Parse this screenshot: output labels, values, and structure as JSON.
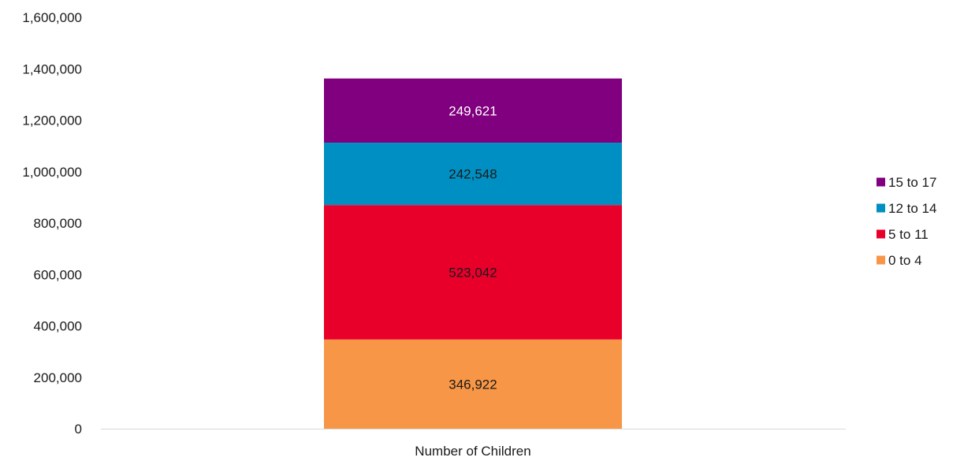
{
  "chart_data": {
    "type": "bar",
    "stacked": true,
    "categories": [
      "Number of Children"
    ],
    "series": [
      {
        "name": "0 to 4",
        "values": [
          346922
        ],
        "color": "#f79646",
        "label_color": "#1a1a1a"
      },
      {
        "name": "5 to 11",
        "values": [
          523042
        ],
        "color": "#e8002b",
        "label_color": "#1a1a1a"
      },
      {
        "name": "12 to 14",
        "values": [
          242548
        ],
        "color": "#008fc2",
        "label_color": "#1a1a1a"
      },
      {
        "name": "15 to 17",
        "values": [
          249621
        ],
        "color": "#80007f",
        "label_color": "#ffffff"
      }
    ],
    "data_labels": [
      "346,922",
      "523,042",
      "242,548",
      "249,621"
    ],
    "y_ticks": [
      0,
      200000,
      400000,
      600000,
      800000,
      1000000,
      1200000,
      1400000,
      1600000
    ],
    "y_tick_labels": [
      "0",
      "200,000",
      "400,000",
      "600,000",
      "800,000",
      "1,000,000",
      "1,200,000",
      "1,400,000",
      "1,600,000"
    ],
    "ylim": [
      0,
      1600000
    ],
    "title": "",
    "xlabel": "",
    "ylabel": "",
    "grid": false,
    "legend_position": "right",
    "legend_order": [
      "15 to 17",
      "12 to 14",
      "5 to 11",
      "0 to 4"
    ]
  }
}
